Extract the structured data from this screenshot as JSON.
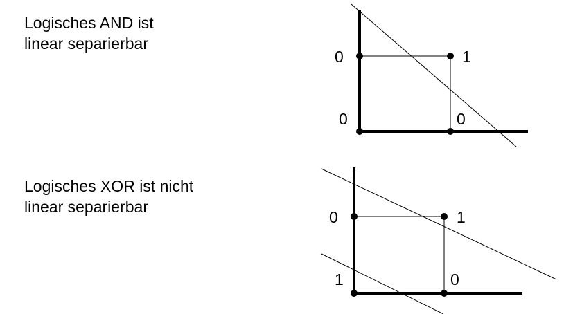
{
  "and_panel": {
    "caption_line1": "Logisches AND ist",
    "caption_line2": "linear separierbar",
    "labels": {
      "top_left": "0",
      "top_right": "1",
      "bottom_left": "0",
      "bottom_right": "0"
    }
  },
  "xor_panel": {
    "caption_line1": "Logisches XOR ist nicht",
    "caption_line2": "linear separierbar",
    "labels": {
      "top_left": "0",
      "top_right": "1",
      "bottom_left": "1",
      "bottom_right": "0"
    }
  }
}
